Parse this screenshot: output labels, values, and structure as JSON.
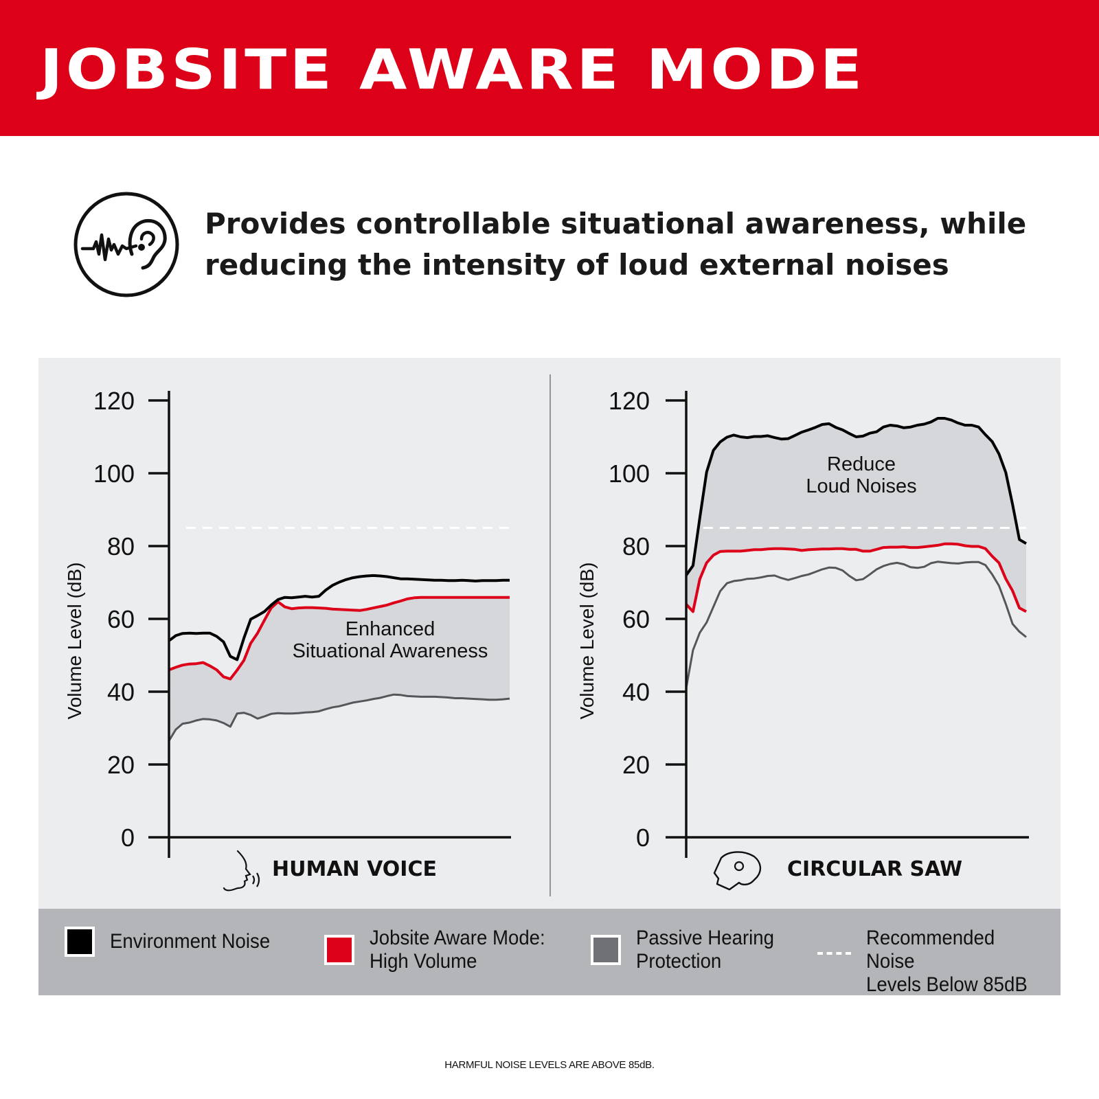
{
  "header": {
    "title": "JOBSITE AWARE MODE",
    "tagline_line1": "Provides controllable situational awareness, while",
    "tagline_line2": "reducing the intensity of loud external noises"
  },
  "colors": {
    "banner": "#dc0018",
    "environment": "#000000",
    "jobsite": "#dc0018",
    "passive": "#55565a",
    "fill": "#d6d7da",
    "recommended": "#ffffff"
  },
  "chart_data": [
    {
      "type": "line",
      "xlabel": "HUMAN VOICE",
      "ylabel": "Volume Level (dB)",
      "ylim": [
        0,
        120
      ],
      "yticks": [
        "0",
        "20",
        "40",
        "60",
        "80",
        "100",
        "120"
      ],
      "x": [
        0,
        2,
        4,
        6,
        8,
        10,
        12,
        14,
        16,
        18,
        20,
        22,
        24,
        26,
        28,
        30,
        32,
        34,
        36,
        38,
        40,
        42,
        44,
        46,
        48,
        50,
        52,
        54,
        56,
        58,
        60,
        62,
        64,
        66,
        68,
        70,
        72,
        74,
        76,
        78,
        80,
        82,
        84,
        86,
        88,
        90,
        92,
        94,
        96,
        98,
        100
      ],
      "series": [
        {
          "name": "Environment Noise",
          "color": "#000000",
          "values": [
            54,
            55.4,
            56.0,
            56.1,
            56.0,
            56.1,
            56.1,
            55.2,
            53.7,
            49.7,
            48.8,
            54.7,
            59.9,
            60.9,
            62.0,
            63.8,
            65.3,
            65.9,
            65.8,
            66.0,
            66.2,
            66.0,
            66.2,
            67.9,
            69.2,
            70.1,
            70.8,
            71.3,
            71.6,
            71.8,
            71.9,
            71.8,
            71.6,
            71.3,
            71.0,
            71.0,
            70.9,
            70.8,
            70.7,
            70.6,
            70.6,
            70.5,
            70.5,
            70.6,
            70.5,
            70.4,
            70.5,
            70.5,
            70.5,
            70.6,
            70.6
          ]
        },
        {
          "name": "Jobsite Aware Mode: High Volume",
          "color": "#dc0018",
          "values": [
            46,
            46.7,
            47.3,
            47.6,
            47.7,
            48.0,
            47.1,
            46.0,
            44.1,
            43.5,
            45.9,
            48.6,
            53.3,
            56.1,
            59.6,
            63.0,
            64.7,
            63.3,
            62.8,
            63.0,
            63.1,
            63.1,
            63.0,
            62.9,
            62.7,
            62.6,
            62.5,
            62.4,
            62.3,
            62.6,
            63.0,
            63.4,
            63.8,
            64.4,
            64.9,
            65.5,
            65.8,
            65.9,
            65.9,
            65.9,
            65.9,
            65.9,
            65.9,
            65.9,
            65.9,
            65.9,
            65.9,
            65.9,
            65.9,
            65.9,
            65.9
          ]
        },
        {
          "name": "Passive Hearing Protection",
          "color": "#55565a",
          "values": [
            26.5,
            29.6,
            31.2,
            31.5,
            32.1,
            32.5,
            32.4,
            32.1,
            31.4,
            30.4,
            34.0,
            34.2,
            33.6,
            32.6,
            33.2,
            33.9,
            34.1,
            34.0,
            34.0,
            34.1,
            34.3,
            34.4,
            34.6,
            35.2,
            35.7,
            36.0,
            36.5,
            37.0,
            37.3,
            37.6,
            38.0,
            38.3,
            38.8,
            39.2,
            39.1,
            38.8,
            38.7,
            38.6,
            38.6,
            38.6,
            38.5,
            38.4,
            38.2,
            38.2,
            38.1,
            38.0,
            37.9,
            37.8,
            37.8,
            37.9,
            38.1
          ]
        }
      ],
      "recommended_level": 85,
      "annotation": "Enhanced\nSituational Awareness"
    },
    {
      "type": "line",
      "xlabel": "CIRCULAR SAW",
      "ylabel": "Volume Level (dB)",
      "ylim": [
        0,
        120
      ],
      "yticks": [
        "0",
        "20",
        "40",
        "60",
        "80",
        "100",
        "120"
      ],
      "x": [
        0,
        2,
        4,
        6,
        8,
        10,
        12,
        14,
        16,
        18,
        20,
        22,
        24,
        26,
        28,
        30,
        32,
        34,
        36,
        38,
        40,
        42,
        44,
        46,
        48,
        50,
        52,
        54,
        56,
        58,
        60,
        62,
        64,
        66,
        68,
        70,
        72,
        74,
        76,
        78,
        80,
        82,
        84,
        86,
        88,
        90,
        92,
        94,
        96,
        98,
        100
      ],
      "series": [
        {
          "name": "Environment Noise",
          "color": "#000000",
          "values": [
            72,
            74.6,
            87.7,
            100.3,
            106.3,
            108.6,
            109.9,
            110.5,
            110.0,
            109.8,
            110.1,
            110.1,
            110.3,
            109.8,
            109.4,
            109.5,
            110.4,
            111.3,
            111.9,
            112.6,
            113.4,
            113.6,
            112.6,
            111.9,
            110.9,
            110.0,
            110.2,
            111.0,
            111.4,
            112.7,
            113.2,
            113.0,
            112.5,
            112.7,
            113.2,
            113.5,
            114.1,
            115.1,
            115.1,
            114.6,
            113.8,
            113.2,
            113.2,
            112.7,
            110.6,
            108.7,
            105.3,
            100.2,
            91.4,
            81.8,
            80.7
          ]
        },
        {
          "name": "Jobsite Aware Mode: High Volume",
          "color": "#dc0018",
          "values": [
            64,
            62.0,
            70.9,
            75.4,
            77.5,
            78.5,
            78.6,
            78.6,
            78.6,
            78.8,
            79.0,
            79.0,
            79.2,
            79.3,
            79.3,
            79.2,
            79.1,
            78.8,
            79.0,
            79.1,
            79.2,
            79.2,
            79.3,
            79.3,
            79.1,
            79.1,
            78.6,
            78.6,
            79.1,
            79.6,
            79.7,
            79.7,
            79.8,
            79.6,
            79.6,
            79.8,
            80.0,
            80.2,
            80.6,
            80.6,
            80.5,
            80.1,
            79.9,
            79.9,
            79.3,
            77.2,
            75.4,
            71.0,
            67.7,
            63.0,
            62.0
          ]
        },
        {
          "name": "Passive Hearing Protection",
          "color": "#55565a",
          "values": [
            41,
            51.4,
            56.2,
            59.0,
            63.3,
            67.6,
            69.8,
            70.4,
            70.6,
            71.0,
            71.1,
            71.4,
            71.8,
            71.9,
            71.2,
            70.7,
            71.2,
            71.8,
            72.2,
            72.9,
            73.6,
            74.1,
            74.0,
            73.3,
            71.8,
            70.6,
            70.9,
            72.2,
            73.6,
            74.5,
            75.1,
            75.4,
            75.0,
            74.2,
            74.0,
            74.3,
            75.3,
            75.7,
            75.5,
            75.3,
            75.2,
            75.5,
            75.6,
            75.6,
            74.8,
            72.2,
            69.1,
            64.1,
            58.6,
            56.5,
            55.0
          ]
        }
      ],
      "recommended_level": 85,
      "annotation": "Reduce\nLoud Noises"
    }
  ],
  "legend": [
    {
      "label": "Environment Noise",
      "color": "#000000"
    },
    {
      "label": "Jobsite Aware Mode:\nHigh Volume",
      "color": "#dc0018"
    },
    {
      "label": "Passive Hearing\nProtection",
      "color": "#707176"
    },
    {
      "label": "Recommended Noise\nLevels Below 85dB",
      "color": "#ffffff"
    }
  ],
  "footnote": "HARMFUL NOISE LEVELS ARE ABOVE 85dB."
}
